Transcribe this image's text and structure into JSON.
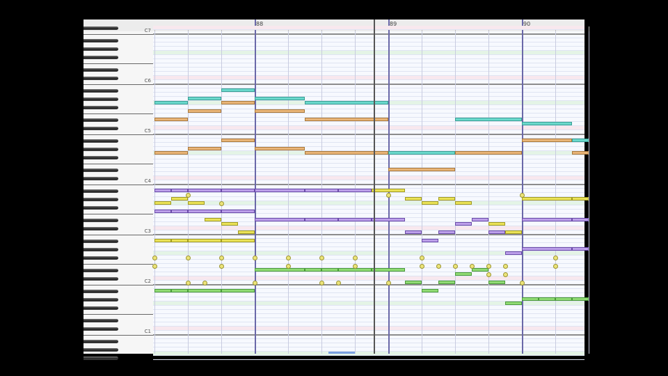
{
  "ruler": {
    "measures": [
      {
        "label": "88",
        "beat": 4
      },
      {
        "label": "89",
        "beat": 8
      },
      {
        "label": "90",
        "beat": 12
      }
    ]
  },
  "keyboard": {
    "octave_labels": [
      {
        "label": "C7",
        "pitch": 96
      },
      {
        "label": "C6",
        "pitch": 84
      },
      {
        "label": "C5",
        "pitch": 72
      },
      {
        "label": "C4",
        "pitch": 60
      },
      {
        "label": "C3",
        "pitch": 48
      },
      {
        "label": "C2",
        "pitch": 36
      },
      {
        "label": "C1",
        "pitch": 24
      }
    ]
  },
  "colors": {
    "cyan": [
      "#6ad8cc",
      "#3a9e94"
    ],
    "orange": [
      "#e8b478",
      "#a8783a"
    ],
    "purple": [
      "#bca0ea",
      "#6a4aa8"
    ],
    "yellow": [
      "#eae258",
      "#a09a20"
    ],
    "green": [
      "#90da74",
      "#4a9a3a"
    ]
  },
  "notes": [
    [
      "cyan",
      79,
      1,
      1
    ],
    [
      "cyan",
      80,
      2,
      1
    ],
    [
      "cyan",
      82,
      3,
      1
    ],
    [
      "cyan",
      80,
      4,
      1.5
    ],
    [
      "cyan",
      79,
      5.5,
      2.5
    ],
    [
      "cyan",
      67,
      8,
      2
    ],
    [
      "cyan",
      75,
      10,
      2
    ],
    [
      "cyan",
      74,
      12,
      1.5
    ],
    [
      "cyan",
      70,
      13.5,
      0.5
    ],
    [
      "orange",
      75,
      1,
      1
    ],
    [
      "orange",
      77,
      2,
      1
    ],
    [
      "orange",
      79,
      3,
      1
    ],
    [
      "orange",
      77,
      4,
      1.5
    ],
    [
      "orange",
      75,
      5.5,
      2.5
    ],
    [
      "orange",
      67,
      1,
      1
    ],
    [
      "orange",
      68,
      2,
      1
    ],
    [
      "orange",
      70,
      3,
      1
    ],
    [
      "orange",
      68,
      4,
      1.5
    ],
    [
      "orange",
      67,
      5.5,
      2.5
    ],
    [
      "orange",
      63,
      8,
      2
    ],
    [
      "orange",
      67,
      10,
      2
    ],
    [
      "orange",
      70,
      12,
      1.5
    ],
    [
      "orange",
      67,
      13.5,
      0.5
    ],
    [
      "purple",
      58,
      1,
      0.5
    ],
    [
      "purple",
      58,
      1.5,
      0.5
    ],
    [
      "purple",
      58,
      2,
      1
    ],
    [
      "purple",
      58,
      3,
      1
    ],
    [
      "purple",
      58,
      4,
      1.5
    ],
    [
      "purple",
      58,
      5.5,
      1
    ],
    [
      "purple",
      58,
      6.5,
      1
    ],
    [
      "purple",
      53,
      1,
      0.5
    ],
    [
      "purple",
      53,
      1.5,
      0.5
    ],
    [
      "purple",
      53,
      2,
      1
    ],
    [
      "purple",
      53,
      3,
      1
    ],
    [
      "purple",
      51,
      4,
      1.5
    ],
    [
      "purple",
      51,
      5.5,
      1
    ],
    [
      "purple",
      51,
      6.5,
      1
    ],
    [
      "purple",
      51,
      7.5,
      1
    ],
    [
      "purple",
      48,
      8.5,
      0.5
    ],
    [
      "purple",
      46,
      9,
      0.5
    ],
    [
      "purple",
      48,
      9.5,
      0.5
    ],
    [
      "purple",
      50,
      10,
      0.5
    ],
    [
      "purple",
      51,
      10.5,
      0.5
    ],
    [
      "purple",
      48,
      11,
      0.5
    ],
    [
      "purple",
      43,
      11.5,
      0.5
    ],
    [
      "purple",
      44,
      12,
      1.5
    ],
    [
      "purple",
      44,
      13.5,
      0.5
    ],
    [
      "purple",
      51,
      12,
      1.5
    ],
    [
      "purple",
      51,
      13.5,
      0.5
    ],
    [
      "yellow",
      55,
      1,
      0.5
    ],
    [
      "yellow",
      56,
      1.5,
      0.5
    ],
    [
      "yellow",
      55,
      2,
      0.5
    ],
    [
      "yellow",
      51,
      2.5,
      0.5
    ],
    [
      "yellow",
      50,
      3,
      0.5
    ],
    [
      "yellow",
      48,
      3.5,
      0.5
    ],
    [
      "yellow",
      46,
      1,
      0.5
    ],
    [
      "yellow",
      46,
      1.5,
      0.5
    ],
    [
      "yellow",
      46,
      2,
      1
    ],
    [
      "yellow",
      46,
      3,
      1
    ],
    [
      "yellow",
      58,
      7.5,
      1
    ],
    [
      "yellow",
      56,
      8.5,
      0.5
    ],
    [
      "yellow",
      55,
      9,
      0.5
    ],
    [
      "yellow",
      56,
      9.5,
      0.5
    ],
    [
      "yellow",
      55,
      10,
      0.5
    ],
    [
      "yellow",
      50,
      11,
      0.5
    ],
    [
      "yellow",
      48,
      11.5,
      0.5
    ],
    [
      "yellow",
      56,
      12,
      1.5
    ],
    [
      "yellow",
      56,
      13.5,
      0.5
    ],
    [
      "green",
      34,
      1,
      0.5
    ],
    [
      "green",
      34,
      1.5,
      0.5
    ],
    [
      "green",
      34,
      2,
      1
    ],
    [
      "green",
      34,
      3,
      1
    ],
    [
      "green",
      39,
      4,
      1.5
    ],
    [
      "green",
      39,
      5.5,
      0.5
    ],
    [
      "green",
      39,
      6,
      0.5
    ],
    [
      "green",
      39,
      6.5,
      1
    ],
    [
      "green",
      39,
      7.5,
      1
    ],
    [
      "green",
      36,
      8.5,
      0.5
    ],
    [
      "green",
      34,
      9,
      0.5
    ],
    [
      "green",
      36,
      9.5,
      0.5
    ],
    [
      "green",
      38,
      10,
      0.5
    ],
    [
      "green",
      39,
      10.5,
      0.5
    ],
    [
      "green",
      36,
      11,
      0.5
    ],
    [
      "green",
      31,
      11.5,
      0.5
    ],
    [
      "green",
      32,
      12,
      0.5
    ],
    [
      "green",
      32,
      12.5,
      0.5
    ],
    [
      "green",
      32,
      13,
      0.5
    ],
    [
      "green",
      32,
      13.5,
      0.5
    ]
  ],
  "markers": [
    [
      57,
      2
    ],
    [
      55,
      3
    ],
    [
      57,
      8
    ],
    [
      57,
      12
    ],
    [
      42,
      1
    ],
    [
      42,
      2
    ],
    [
      42,
      3
    ],
    [
      42,
      4
    ],
    [
      42,
      5
    ],
    [
      42,
      6
    ],
    [
      42,
      7
    ],
    [
      42,
      9
    ],
    [
      42,
      13
    ],
    [
      40,
      1
    ],
    [
      40,
      3
    ],
    [
      40,
      5
    ],
    [
      40,
      7
    ],
    [
      40,
      9
    ],
    [
      40,
      9.5
    ],
    [
      40,
      10
    ],
    [
      40,
      10.5
    ],
    [
      40,
      11
    ],
    [
      40,
      11.5
    ],
    [
      40,
      13
    ],
    [
      38,
      11
    ],
    [
      38,
      11.5
    ],
    [
      36,
      2
    ],
    [
      36,
      2.5
    ],
    [
      36,
      4
    ],
    [
      36,
      6
    ],
    [
      36,
      6.5
    ],
    [
      36,
      8
    ],
    [
      36,
      12
    ]
  ]
}
